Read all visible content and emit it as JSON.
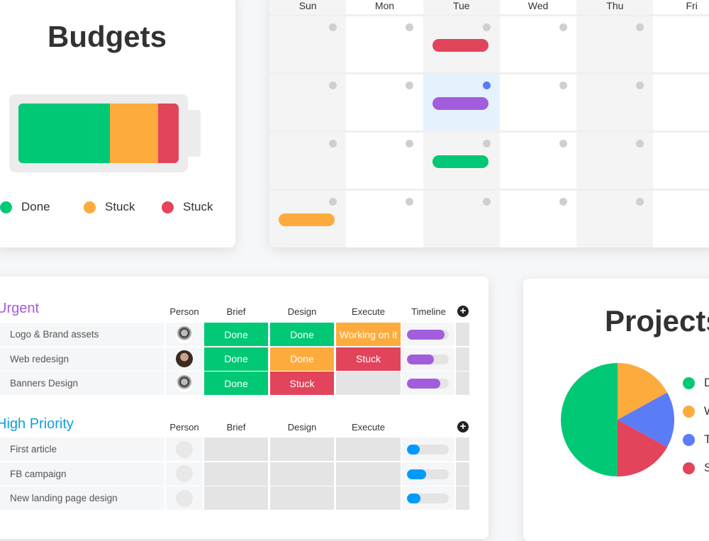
{
  "budgets": {
    "title": "Budgets",
    "segments": [
      {
        "label": "Done",
        "color": "#00c875",
        "share": 0.57
      },
      {
        "label": "Stuck",
        "color": "#fdab3d",
        "share": 0.3
      },
      {
        "label": "Stuck",
        "color": "#e2445c",
        "share": 0.13
      }
    ]
  },
  "calendar": {
    "days": [
      "Sun",
      "Mon",
      "Tue",
      "Wed",
      "Thu",
      "Fri"
    ],
    "events": [
      {
        "day": 2,
        "week": 0,
        "color": "#e2445c"
      },
      {
        "day": 2,
        "week": 1,
        "color": "#a25ddc"
      },
      {
        "day": 2,
        "week": 2,
        "color": "#00c875"
      },
      {
        "day": 0,
        "week": 3,
        "color": "#fdab3d"
      }
    ],
    "highlight": {
      "day": 2,
      "week": 1,
      "color": "#e5f2fd",
      "dot": "#5b7cf7"
    }
  },
  "board": {
    "groups": [
      {
        "title": "Urgent",
        "color": "#a25ddc",
        "columns": [
          "Person",
          "Brief",
          "Design",
          "Execute",
          "Timeline"
        ],
        "rows": [
          {
            "name": "Logo & Brand assets",
            "person": "man",
            "cells": [
              {
                "text": "Done",
                "color": "#00c875"
              },
              {
                "text": "Done",
                "color": "#00c875"
              },
              {
                "text": "Working on it",
                "color": "#fdab3d"
              }
            ],
            "progress": 0.9,
            "bar": "#a25ddc"
          },
          {
            "name": "Web redesign",
            "person": "woman",
            "cells": [
              {
                "text": "Done",
                "color": "#00c875"
              },
              {
                "text": "Done",
                "color": "#fdab3d"
              },
              {
                "text": "Stuck",
                "color": "#e2445c"
              }
            ],
            "progress": 0.65,
            "bar": "#a25ddc"
          },
          {
            "name": "Banners Design",
            "person": "man",
            "cells": [
              {
                "text": "Done",
                "color": "#00c875"
              },
              {
                "text": "Stuck",
                "color": "#e2445c"
              },
              {
                "text": "",
                "color": "#e4e4e4"
              }
            ],
            "progress": 0.8,
            "bar": "#a25ddc"
          }
        ]
      },
      {
        "title": "High Priority",
        "color": "#0b9fdc",
        "columns": [
          "Person",
          "Brief",
          "Design",
          "Execute",
          ""
        ],
        "rows": [
          {
            "name": "First article",
            "person": "",
            "cells": [
              {
                "text": "",
                "color": "#e4e4e4"
              },
              {
                "text": "",
                "color": "#e4e4e4"
              },
              {
                "text": "",
                "color": "#e4e4e4"
              }
            ],
            "progress": 0.3,
            "bar": "#009aff"
          },
          {
            "name": "FB campaign",
            "person": "",
            "cells": [
              {
                "text": "",
                "color": "#e4e4e4"
              },
              {
                "text": "",
                "color": "#e4e4e4"
              },
              {
                "text": "",
                "color": "#e4e4e4"
              }
            ],
            "progress": 0.45,
            "bar": "#009aff"
          },
          {
            "name": "New landing page design",
            "person": "",
            "cells": [
              {
                "text": "",
                "color": "#e4e4e4"
              },
              {
                "text": "",
                "color": "#e4e4e4"
              },
              {
                "text": "",
                "color": "#e4e4e4"
              }
            ],
            "progress": 0.33,
            "bar": "#009aff"
          }
        ]
      }
    ]
  },
  "projects": {
    "title": "Projects",
    "slices": [
      {
        "label": "D",
        "color": "#00c875",
        "value": 50
      },
      {
        "label": "W",
        "color": "#fdab3d",
        "value": 17
      },
      {
        "label": "T",
        "color": "#5b7cf7",
        "value": 16
      },
      {
        "label": "S",
        "color": "#e2445c",
        "value": 17
      }
    ]
  }
}
